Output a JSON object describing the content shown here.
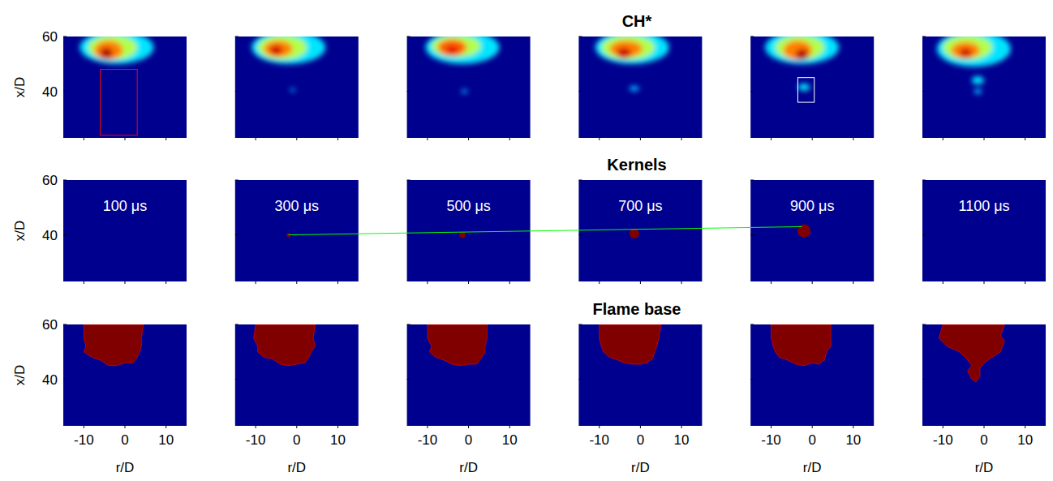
{
  "chart_data": {
    "type": "image_grid",
    "xlabel": "r/D",
    "ylabel": "x/D",
    "xlim": [
      -15,
      15
    ],
    "ylim": [
      23,
      60
    ],
    "xticks": [
      -10,
      0,
      10
    ],
    "yticks": [
      40,
      60
    ],
    "rows": [
      {
        "title": "CH*",
        "panels": [
          {
            "blobs": [
              {
                "r": -2,
                "x": 56,
                "rr": 9,
                "rx": 6,
                "level": 0.35
              },
              {
                "r": -3,
                "x": 56,
                "rr": 6,
                "rx": 4.5,
                "level": 0.55
              },
              {
                "r": -4,
                "x": 55,
                "rr": 3.5,
                "rx": 3.5,
                "level": 0.75
              },
              {
                "r": -4.5,
                "x": 54,
                "rr": 1.5,
                "rx": 2,
                "level": 0.95
              }
            ]
          },
          {
            "blobs": [
              {
                "r": -2,
                "x": 56,
                "rr": 9,
                "rx": 6,
                "level": 0.35
              },
              {
                "r": -3.5,
                "x": 56,
                "rr": 6,
                "rx": 4.5,
                "level": 0.55
              },
              {
                "r": -4.5,
                "x": 55.5,
                "rr": 3.5,
                "rx": 3,
                "level": 0.75
              },
              {
                "r": -5,
                "x": 55,
                "rr": 1.5,
                "rx": 1.8,
                "level": 0.92
              },
              {
                "r": -1,
                "x": 40.5,
                "rr": 0.6,
                "rx": 0.6,
                "level": 0.3
              }
            ]
          },
          {
            "blobs": [
              {
                "r": -1.5,
                "x": 56,
                "rr": 9,
                "rx": 6,
                "level": 0.35
              },
              {
                "r": -3,
                "x": 56.5,
                "rr": 6,
                "rx": 4,
                "level": 0.55
              },
              {
                "r": -4,
                "x": 56,
                "rr": 3.5,
                "rx": 3,
                "level": 0.78
              },
              {
                "r": -4,
                "x": 55,
                "rr": 1.5,
                "rx": 1.5,
                "level": 0.9
              },
              {
                "r": -1,
                "x": 40,
                "rr": 0.8,
                "rx": 0.7,
                "level": 0.3
              }
            ]
          },
          {
            "blobs": [
              {
                "r": -2,
                "x": 56,
                "rr": 9,
                "rx": 6,
                "level": 0.35
              },
              {
                "r": -3,
                "x": 56,
                "rr": 6.5,
                "rx": 4.5,
                "level": 0.55
              },
              {
                "r": -3.5,
                "x": 55.5,
                "rr": 4,
                "rx": 3,
                "level": 0.75
              },
              {
                "r": -4,
                "x": 54,
                "rr": 1.8,
                "rx": 2,
                "level": 0.92
              },
              {
                "r": -1.5,
                "x": 41,
                "rr": 1.2,
                "rx": 1,
                "level": 0.3
              }
            ]
          },
          {
            "blobs": [
              {
                "r": -2.5,
                "x": 56,
                "rr": 9,
                "rx": 6,
                "level": 0.35
              },
              {
                "r": -3,
                "x": 56,
                "rr": 6,
                "rx": 4.5,
                "level": 0.55
              },
              {
                "r": -3.5,
                "x": 55,
                "rr": 3.5,
                "rx": 3.5,
                "level": 0.75
              },
              {
                "r": -2.5,
                "x": 53.5,
                "rr": 1.5,
                "rx": 2,
                "level": 0.95
              },
              {
                "r": -2,
                "x": 41.5,
                "rr": 1.5,
                "rx": 1.3,
                "level": 0.35
              }
            ]
          },
          {
            "blobs": [
              {
                "r": -2.5,
                "x": 55.5,
                "rr": 9,
                "rx": 6.5,
                "level": 0.35
              },
              {
                "r": -4,
                "x": 56,
                "rr": 6,
                "rx": 4.5,
                "level": 0.55
              },
              {
                "r": -4.5,
                "x": 55,
                "rr": 3.5,
                "rx": 3,
                "level": 0.75
              },
              {
                "r": -4.5,
                "x": 54,
                "rr": 1.5,
                "rx": 1.8,
                "level": 0.92
              },
              {
                "r": -1.5,
                "x": 44,
                "rr": 1.5,
                "rx": 1.5,
                "level": 0.35
              },
              {
                "r": -1.5,
                "x": 40,
                "rr": 1,
                "rx": 1,
                "level": 0.3
              }
            ]
          }
        ]
      },
      {
        "title": "Kernels",
        "color": "#800000",
        "panel_labels": [
          "100 μs",
          "300 μs",
          "500 μs",
          "700 μs",
          "900 μs",
          "1100 μs"
        ],
        "panels": [
          {
            "kernels": []
          },
          {
            "kernels": [
              {
                "r": -2,
                "x": 40,
                "size": 0.5
              }
            ]
          },
          {
            "kernels": [
              {
                "r": -1.5,
                "x": 40,
                "size": 0.8
              }
            ]
          },
          {
            "kernels": [
              {
                "r": -1.5,
                "x": 40.5,
                "size": 1.2
              }
            ]
          },
          {
            "kernels": [
              {
                "r": -2,
                "x": 41.5,
                "size": 1.6
              }
            ]
          },
          {
            "kernels": []
          }
        ]
      },
      {
        "title": "Flame base",
        "color": "#800000",
        "panels": [
          {
            "polygon": [
              [
                -10,
                60
              ],
              [
                -10,
                55
              ],
              [
                -9.5,
                52
              ],
              [
                -10,
                50
              ],
              [
                -8,
                48
              ],
              [
                -6,
                47
              ],
              [
                -4,
                45
              ],
              [
                -2,
                45
              ],
              [
                0,
                46
              ],
              [
                2,
                46
              ],
              [
                3,
                48
              ],
              [
                3.5,
                50
              ],
              [
                4,
                52
              ],
              [
                4,
                55
              ],
              [
                4.5,
                60
              ]
            ]
          },
          {
            "polygon": [
              [
                -10,
                60
              ],
              [
                -10.5,
                55
              ],
              [
                -9.5,
                52
              ],
              [
                -9.5,
                50
              ],
              [
                -8,
                48
              ],
              [
                -6,
                47.5
              ],
              [
                -4,
                45.5
              ],
              [
                -2,
                45
              ],
              [
                0,
                45.5
              ],
              [
                2,
                46
              ],
              [
                3,
                48
              ],
              [
                3.5,
                50
              ],
              [
                4.5,
                52
              ],
              [
                4,
                55
              ],
              [
                4.5,
                60
              ]
            ]
          },
          {
            "polygon": [
              [
                -10,
                60
              ],
              [
                -10,
                55
              ],
              [
                -9,
                52
              ],
              [
                -9.5,
                50
              ],
              [
                -8,
                48
              ],
              [
                -6,
                47
              ],
              [
                -4,
                45.5
              ],
              [
                -2,
                45
              ],
              [
                0,
                45.5
              ],
              [
                2,
                45.5
              ],
              [
                3,
                47.5
              ],
              [
                4,
                50
              ],
              [
                4,
                52
              ],
              [
                4.5,
                55
              ],
              [
                4.5,
                60
              ]
            ]
          },
          {
            "polygon": [
              [
                -10,
                60
              ],
              [
                -10,
                55
              ],
              [
                -9.5,
                52
              ],
              [
                -9,
                50
              ],
              [
                -7.5,
                48
              ],
              [
                -5.5,
                47
              ],
              [
                -4,
                46
              ],
              [
                -2,
                45.5
              ],
              [
                0,
                45.5
              ],
              [
                1.5,
                46
              ],
              [
                3,
                47.5
              ],
              [
                3.5,
                50
              ],
              [
                4,
                52
              ],
              [
                4.5,
                55
              ],
              [
                5,
                60
              ]
            ]
          },
          {
            "polygon": [
              [
                -10,
                60
              ],
              [
                -10,
                55
              ],
              [
                -9.5,
                52
              ],
              [
                -9,
                50
              ],
              [
                -8,
                48
              ],
              [
                -6,
                47
              ],
              [
                -4,
                45.5
              ],
              [
                -2,
                45
              ],
              [
                0,
                46
              ],
              [
                1.5,
                45.5
              ],
              [
                3,
                47
              ],
              [
                3.5,
                50
              ],
              [
                4.5,
                52
              ],
              [
                4.5,
                55
              ],
              [
                4.5,
                60
              ]
            ]
          },
          {
            "polygon": [
              [
                -10,
                60
              ],
              [
                -11,
                55
              ],
              [
                -9,
                52
              ],
              [
                -6,
                50
              ],
              [
                -4,
                47
              ],
              [
                -3,
                45
              ],
              [
                -4,
                43
              ],
              [
                -3,
                40
              ],
              [
                -2,
                39
              ],
              [
                -1,
                41
              ],
              [
                -1,
                44
              ],
              [
                0,
                46
              ],
              [
                2,
                48
              ],
              [
                4,
                50
              ],
              [
                5,
                54
              ],
              [
                4,
                56
              ],
              [
                5,
                60
              ]
            ]
          }
        ]
      }
    ],
    "annotations": [
      {
        "kind": "rect",
        "row": 0,
        "panel": 0,
        "r": [
          -6,
          3
        ],
        "x": [
          24,
          48
        ],
        "color": "#ff0000"
      },
      {
        "kind": "rect",
        "row": 0,
        "panel": 4,
        "r": [
          -3.5,
          0.5
        ],
        "x": [
          36,
          45
        ],
        "color": "#ffffff"
      },
      {
        "kind": "line",
        "row": 1,
        "from": {
          "panel": 1,
          "r": -2,
          "x": 40
        },
        "to": {
          "panel": 4,
          "r": -2.5,
          "x": 43
        },
        "color": "#00ff00"
      }
    ]
  }
}
